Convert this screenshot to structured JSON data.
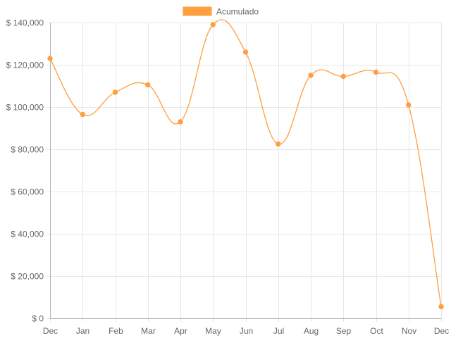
{
  "colors": {
    "series": "#ff9f40",
    "grid": "#e6e6e6",
    "text": "#666666"
  },
  "chart_data": {
    "type": "line",
    "categories": [
      "Dec",
      "Jan",
      "Feb",
      "Mar",
      "Apr",
      "May",
      "Jun",
      "Jul",
      "Aug",
      "Sep",
      "Oct",
      "Nov",
      "Dec"
    ],
    "series": [
      {
        "name": "Acumulado",
        "color": "#ff9f40",
        "values": [
          123000,
          96500,
          107000,
          110500,
          93000,
          139000,
          126000,
          82500,
          115000,
          114500,
          116500,
          101000,
          5500
        ]
      }
    ],
    "ylim": [
      0,
      140000
    ],
    "y_ticks": [
      {
        "value": 0,
        "label": "$ 0"
      },
      {
        "value": 20000,
        "label": "$ 20,000"
      },
      {
        "value": 40000,
        "label": "$ 40,000"
      },
      {
        "value": 60000,
        "label": "$ 60,000"
      },
      {
        "value": 80000,
        "label": "$ 80,000"
      },
      {
        "value": 100000,
        "label": "$ 100,000"
      },
      {
        "value": 120000,
        "label": "$ 120,000"
      },
      {
        "value": 140000,
        "label": "$ 140,000"
      }
    ],
    "title": "",
    "xlabel": "",
    "ylabel": "",
    "grid": true,
    "legend_position": "top"
  }
}
